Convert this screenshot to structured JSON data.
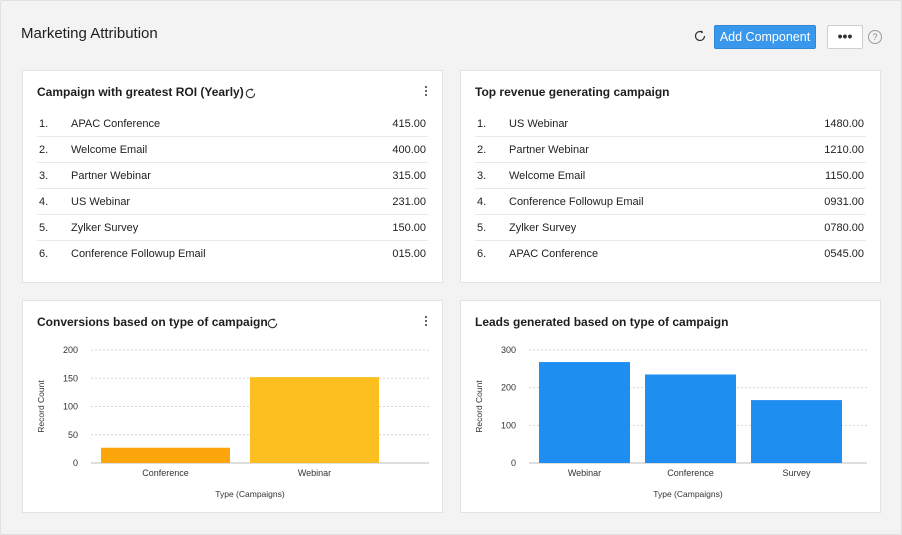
{
  "header": {
    "title": "Marketing Attribution",
    "add_label": "Add Component",
    "more_label": "•••",
    "help_label": "?"
  },
  "cards": {
    "roi": {
      "title": "Campaign with greatest ROI (Yearly)",
      "rows": [
        {
          "num": "1.",
          "name": "APAC Conference",
          "value": "415.00"
        },
        {
          "num": "2.",
          "name": "Welcome Email",
          "value": "400.00"
        },
        {
          "num": "3.",
          "name": "Partner Webinar",
          "value": "315.00"
        },
        {
          "num": "4.",
          "name": "US Webinar",
          "value": "231.00"
        },
        {
          "num": "5.",
          "name": "Zylker Survey",
          "value": "150.00"
        },
        {
          "num": "6.",
          "name": "Conference Followup Email",
          "value": "015.00"
        }
      ]
    },
    "revenue": {
      "title": "Top revenue generating campaign",
      "rows": [
        {
          "num": "1.",
          "name": "US Webinar",
          "value": "1480.00"
        },
        {
          "num": "2.",
          "name": "Partner Webinar",
          "value": "1210.00"
        },
        {
          "num": "3.",
          "name": "Welcome Email",
          "value": "1150.00"
        },
        {
          "num": "4.",
          "name": "Conference Followup Email",
          "value": "0931.00"
        },
        {
          "num": "5.",
          "name": "Zylker Survey",
          "value": "0780.00"
        },
        {
          "num": "6.",
          "name": "APAC Conference",
          "value": "0545.00"
        }
      ]
    },
    "conversions": {
      "title": "Conversions based on type of campaign"
    },
    "leads": {
      "title": "Leads generated based on type of campaign"
    }
  },
  "colors": {
    "accent": "#3a98ec",
    "conference_bar": "#fca60b",
    "webinar_bar": "#fdbf1f",
    "leads_bar": "#1f8ef1"
  },
  "chart_data": [
    {
      "type": "bar",
      "categories": [
        "Conference",
        "Webinar"
      ],
      "values": [
        27,
        152
      ],
      "colors": [
        "#fca60b",
        "#fdbf1f"
      ],
      "xlabel": "Type (Campaigns)",
      "ylabel": "Record Count",
      "yticks": [
        "0",
        "50",
        "100",
        "150",
        "200"
      ],
      "ylim": [
        0,
        200
      ],
      "grid": true
    },
    {
      "type": "bar",
      "categories": [
        "Webinar",
        "Conference",
        "Survey"
      ],
      "values": [
        268,
        235,
        167
      ],
      "colors": [
        "#1f8ef1",
        "#1f8ef1",
        "#1f8ef1"
      ],
      "xlabel": "Type (Campaigns)",
      "ylabel": "Record Count",
      "yticks": [
        "0",
        "100",
        "200",
        "300"
      ],
      "ylim": [
        0,
        300
      ],
      "grid": true
    }
  ]
}
